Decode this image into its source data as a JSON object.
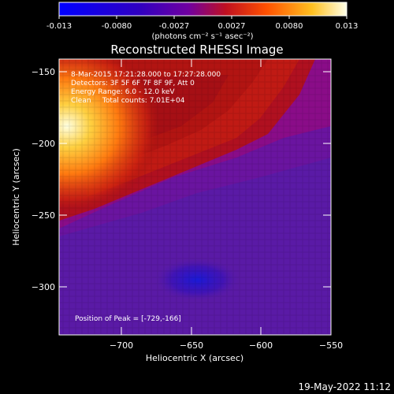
{
  "colorbar": {
    "ticks": [
      "-0.013",
      "-0.0080",
      "-0.0027",
      "0.0027",
      "0.0080",
      "0.013"
    ],
    "unit_label": "(photons cm⁻² s⁻¹ asec⁻²)"
  },
  "timestamp": "19-May-2022 11:12",
  "colors": {
    "background": "#000000",
    "text": "#ffffff"
  },
  "chart_data": {
    "type": "heatmap",
    "title": "Reconstructed RHESSI Image",
    "xlabel": "Heliocentric X (arcsec)",
    "ylabel": "Heliocentric Y (arcsec)",
    "xlim": [
      -745,
      -550
    ],
    "ylim": [
      -332,
      -140
    ],
    "x_ticks": [
      -700,
      -650,
      -600,
      -550
    ],
    "x_tick_labels": [
      "−700",
      "−650",
      "−600",
      "−550"
    ],
    "y_ticks": [
      -150,
      -200,
      -250,
      -300
    ],
    "y_tick_labels": [
      "−150",
      "−200",
      "−250",
      "−300"
    ],
    "colorbar_range": [
      -0.013,
      0.013
    ],
    "colormap": [
      "#0000ff",
      "#3a00b0",
      "#6a00a0",
      "#b01010",
      "#ff4000",
      "#ffc020",
      "#ffffe0"
    ],
    "annotations": [
      "8-Mar-2015 17:21:28.000 to 17:27:28.000",
      "Detectors: 3F 5F 6F 7F 8F 9F, Att 0",
      "Energy Range: 6.0 - 12.0 keV",
      "Clean     Total counts: 7.01E+04"
    ],
    "peak_label": "Position of Peak = [-729,-166]",
    "peak_position": [
      -729,
      -166
    ]
  }
}
